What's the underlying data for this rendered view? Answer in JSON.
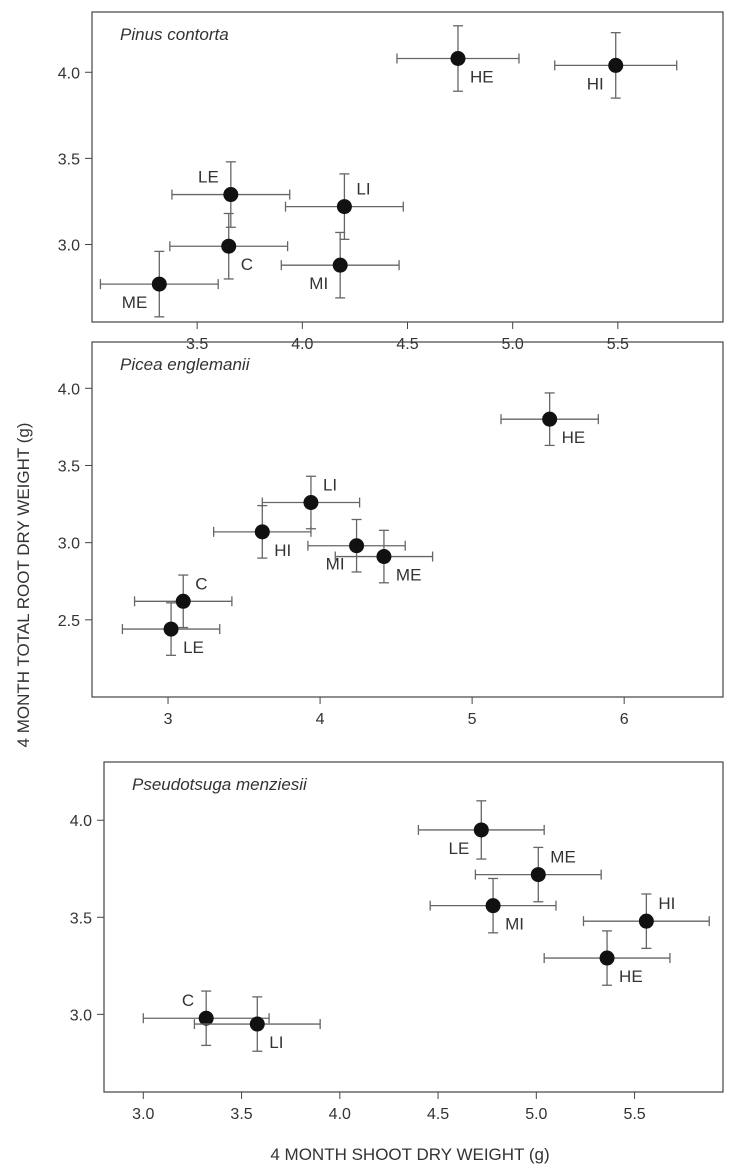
{
  "chart_data": [
    {
      "type": "scatter",
      "title": "Pinus contorta",
      "xlim": [
        3.0,
        6.0
      ],
      "ylim": [
        2.55,
        4.35
      ],
      "xticks": [
        3.5,
        4.0,
        4.5,
        5.0,
        5.5
      ],
      "xtick_labels": [
        "3.5",
        "4.0",
        "4.5",
        "5.0",
        "5.5"
      ],
      "yticks": [
        3.0,
        3.5,
        4.0
      ],
      "ytick_labels": [
        "3.0",
        "3.5",
        "4.0"
      ],
      "points": [
        {
          "label": "HE",
          "x": 4.74,
          "y": 4.08,
          "xerr": 0.29,
          "yerr": 0.19,
          "label_pos": "below-right"
        },
        {
          "label": "HI",
          "x": 5.49,
          "y": 4.04,
          "xerr": 0.29,
          "yerr": 0.19,
          "label_pos": "below-left"
        },
        {
          "label": "LE",
          "x": 3.66,
          "y": 3.29,
          "xerr": 0.28,
          "yerr": 0.19,
          "label_pos": "above-left"
        },
        {
          "label": "LI",
          "x": 4.2,
          "y": 3.22,
          "xerr": 0.28,
          "yerr": 0.19,
          "label_pos": "above-right"
        },
        {
          "label": "C",
          "x": 3.65,
          "y": 2.99,
          "xerr": 0.28,
          "yerr": 0.19,
          "label_pos": "below-right"
        },
        {
          "label": "MI",
          "x": 4.18,
          "y": 2.88,
          "xerr": 0.28,
          "yerr": 0.19,
          "label_pos": "below-left"
        },
        {
          "label": "ME",
          "x": 3.32,
          "y": 2.77,
          "xerr": 0.28,
          "yerr": 0.19,
          "label_pos": "below-left"
        }
      ]
    },
    {
      "type": "scatter",
      "title": "Picea englemanii",
      "xlim": [
        2.5,
        6.65
      ],
      "ylim": [
        2.0,
        4.3
      ],
      "xticks": [
        3,
        4,
        5,
        6
      ],
      "xtick_labels": [
        "3",
        "4",
        "5",
        "6"
      ],
      "yticks": [
        2.5,
        3.0,
        3.5,
        4.0
      ],
      "ytick_labels": [
        "2.5",
        "3.0",
        "3.5",
        "4.0"
      ],
      "points": [
        {
          "label": "HE",
          "x": 5.51,
          "y": 3.8,
          "xerr": 0.32,
          "yerr": 0.17,
          "label_pos": "below-right"
        },
        {
          "label": "LI",
          "x": 3.94,
          "y": 3.26,
          "xerr": 0.32,
          "yerr": 0.17,
          "label_pos": "above-right"
        },
        {
          "label": "HI",
          "x": 3.62,
          "y": 3.07,
          "xerr": 0.32,
          "yerr": 0.17,
          "label_pos": "below-right"
        },
        {
          "label": "MI",
          "x": 4.24,
          "y": 2.98,
          "xerr": 0.32,
          "yerr": 0.17,
          "label_pos": "below-left"
        },
        {
          "label": "ME",
          "x": 4.42,
          "y": 2.91,
          "xerr": 0.32,
          "yerr": 0.17,
          "label_pos": "below-right"
        },
        {
          "label": "C",
          "x": 3.1,
          "y": 2.62,
          "xerr": 0.32,
          "yerr": 0.17,
          "label_pos": "above-right"
        },
        {
          "label": "LE",
          "x": 3.02,
          "y": 2.44,
          "xerr": 0.32,
          "yerr": 0.17,
          "label_pos": "below-right"
        }
      ]
    },
    {
      "type": "scatter",
      "title": "Pseudotsuga menziesii",
      "xlim": [
        2.8,
        5.95
      ],
      "ylim": [
        2.6,
        4.3
      ],
      "xticks": [
        3.0,
        3.5,
        4.0,
        4.5,
        5.0,
        5.5
      ],
      "xtick_labels": [
        "3.0",
        "3.5",
        "4.0",
        "4.5",
        "5.0",
        "5.5"
      ],
      "yticks": [
        3.0,
        3.5,
        4.0
      ],
      "ytick_labels": [
        "3.0",
        "3.5",
        "4.0"
      ],
      "points": [
        {
          "label": "LE",
          "x": 4.72,
          "y": 3.95,
          "xerr": 0.32,
          "yerr": 0.15,
          "label_pos": "below-left"
        },
        {
          "label": "ME",
          "x": 5.01,
          "y": 3.72,
          "xerr": 0.32,
          "yerr": 0.14,
          "label_pos": "above-right"
        },
        {
          "label": "MI",
          "x": 4.78,
          "y": 3.56,
          "xerr": 0.32,
          "yerr": 0.14,
          "label_pos": "below-right"
        },
        {
          "label": "HI",
          "x": 5.56,
          "y": 3.48,
          "xerr": 0.32,
          "yerr": 0.14,
          "label_pos": "above-right"
        },
        {
          "label": "HE",
          "x": 5.36,
          "y": 3.29,
          "xerr": 0.32,
          "yerr": 0.14,
          "label_pos": "below-right"
        },
        {
          "label": "C",
          "x": 3.32,
          "y": 2.98,
          "xerr": 0.32,
          "yerr": 0.14,
          "label_pos": "above-left"
        },
        {
          "label": "LI",
          "x": 3.58,
          "y": 2.95,
          "xerr": 0.32,
          "yerr": 0.14,
          "label_pos": "below-right"
        }
      ]
    }
  ],
  "shared": {
    "ylabel": "4 MONTH TOTAL ROOT DRY WEIGHT (g)",
    "xlabel": "4 MONTH SHOOT DRY WEIGHT (g)",
    "colors": {
      "marker": "#111111",
      "errorbar": "#666666",
      "frame": "#444444",
      "text": "#333333"
    }
  }
}
